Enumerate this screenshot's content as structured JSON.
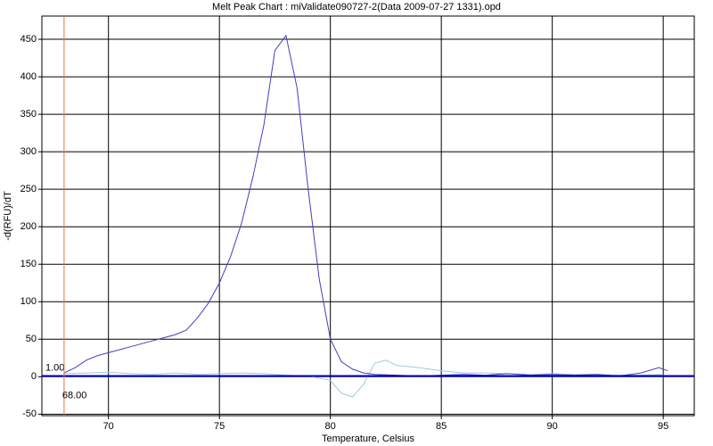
{
  "chart_data": {
    "type": "line",
    "title": "Melt Peak Chart : miValidate090727-2(Data 2009-07-27 1331).opd",
    "x_label": "Temperature, Celsius",
    "y_label": "-d(RFU)/dT",
    "xlim": [
      67,
      96.4
    ],
    "ylim": [
      -52,
      481
    ],
    "xticks": [
      70,
      75,
      80,
      85,
      90,
      95
    ],
    "yticks": [
      -50,
      0,
      50,
      100,
      150,
      200,
      250,
      300,
      350,
      400,
      450
    ],
    "grid": true,
    "threshold": {
      "value": 1,
      "label": "1.00",
      "color": "#0000cc"
    },
    "marker": {
      "value": 68,
      "label": "68.00",
      "color": "#e07840"
    },
    "series": [
      {
        "color": "#4040c0",
        "x": [
          68,
          68.5,
          69,
          69.5,
          70,
          70.5,
          71,
          71.5,
          72,
          72.5,
          73,
          73.5,
          74,
          74.5,
          75,
          75.5,
          76,
          76.5,
          77,
          77.5,
          78,
          78.5,
          79,
          79.5,
          80,
          80.5,
          81,
          81.5,
          82,
          83,
          84,
          85,
          86,
          87,
          88,
          89,
          90,
          91,
          92,
          93,
          94,
          94.8,
          95.2
        ],
        "values": [
          5,
          12,
          22,
          28,
          32,
          36,
          40,
          44,
          48,
          52,
          56,
          62,
          78,
          98,
          125,
          160,
          205,
          265,
          335,
          435,
          455,
          385,
          250,
          130,
          50,
          20,
          10,
          5,
          3,
          2,
          1,
          2,
          3,
          2,
          4,
          2,
          3,
          2,
          3,
          1,
          5,
          12,
          8
        ]
      },
      {
        "color": "#a0c8e0",
        "x": [
          68,
          69,
          70,
          71,
          72,
          73,
          74,
          75,
          76,
          77,
          78,
          79,
          80,
          80.5,
          81,
          81.5,
          82,
          82.5,
          83,
          84,
          85,
          86,
          87,
          88,
          89,
          90,
          91,
          92,
          93,
          94,
          95
        ],
        "values": [
          4,
          5,
          6,
          4,
          3,
          5,
          3,
          4,
          5,
          4,
          2,
          1,
          -5,
          -22,
          -27,
          -10,
          18,
          22,
          15,
          12,
          8,
          5,
          5,
          4,
          3,
          4,
          3,
          3,
          2,
          2,
          3
        ]
      }
    ]
  }
}
